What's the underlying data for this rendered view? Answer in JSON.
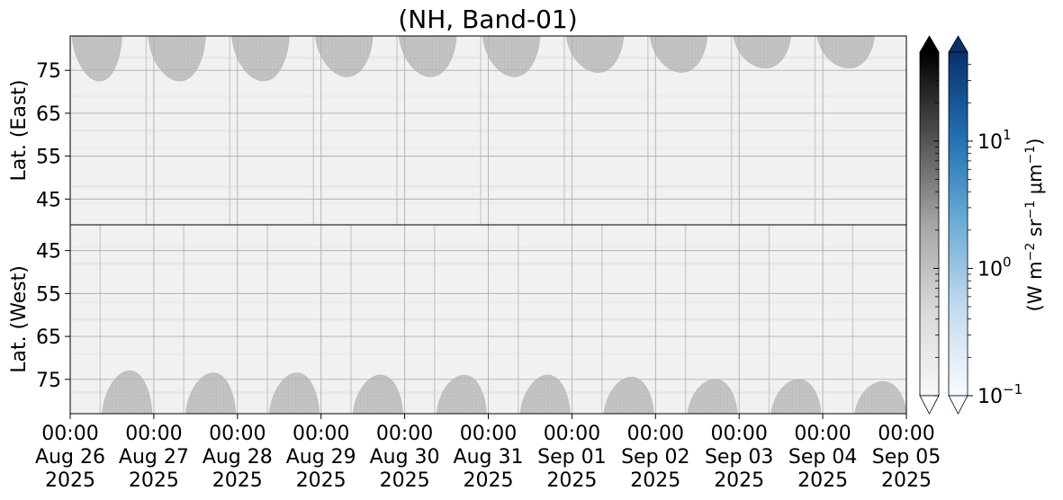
{
  "chart_data": {
    "type": "heatmap",
    "title": "(NH, Band-01)",
    "x_range": [
      "2025-08-26T00:00",
      "2025-09-05T00:00"
    ],
    "x_ticks": [
      {
        "time": "00:00",
        "date": "Aug 26",
        "year": "2025"
      },
      {
        "time": "00:00",
        "date": "Aug 27",
        "year": "2025"
      },
      {
        "time": "00:00",
        "date": "Aug 28",
        "year": "2025"
      },
      {
        "time": "00:00",
        "date": "Aug 29",
        "year": "2025"
      },
      {
        "time": "00:00",
        "date": "Aug 30",
        "year": "2025"
      },
      {
        "time": "00:00",
        "date": "Aug 31",
        "year": "2025"
      },
      {
        "time": "00:00",
        "date": "Sep 01",
        "year": "2025"
      },
      {
        "time": "00:00",
        "date": "Sep 02",
        "year": "2025"
      },
      {
        "time": "00:00",
        "date": "Sep 03",
        "year": "2025"
      },
      {
        "time": "00:00",
        "date": "Sep 04",
        "year": "2025"
      },
      {
        "time": "00:00",
        "date": "Sep 05",
        "year": "2025"
      }
    ],
    "grid": true,
    "panels": [
      {
        "name": "east",
        "ylabel": "Lat. (East)",
        "ylim": [
          83,
          39
        ],
        "yticks": [
          "45",
          "55",
          "65",
          "75"
        ],
        "ytick_values": [
          45,
          55,
          65,
          75
        ],
        "swath_peak_lat": [
          72.5,
          72.5,
          72.5,
          73.5,
          73.5,
          73.5,
          74.5,
          74.5,
          75.5,
          75.5
        ],
        "swath_start_day": [
          0.02,
          0.93,
          1.93,
          2.93,
          3.93,
          4.93,
          5.93,
          6.93,
          7.93,
          8.93
        ],
        "swath_end_day": [
          0.62,
          1.62,
          2.62,
          3.62,
          4.62,
          5.62,
          6.62,
          7.62,
          8.62,
          9.62
        ]
      },
      {
        "name": "west",
        "ylabel": "Lat. (West)",
        "ylim": [
          39,
          83
        ],
        "yticks": [
          "75",
          "65",
          "55",
          "45"
        ],
        "ytick_values": [
          75,
          65,
          55,
          45
        ],
        "swath_peak_lat": [
          73,
          73.5,
          73.5,
          74,
          74,
          74,
          74.5,
          75,
          75,
          75.5
        ],
        "swath_start_day": [
          0.38,
          1.38,
          2.38,
          3.38,
          4.38,
          5.38,
          6.38,
          7.38,
          8.38,
          9.38
        ],
        "swath_end_day": [
          0.98,
          1.98,
          2.98,
          3.98,
          4.98,
          5.98,
          6.98,
          7.98,
          8.98,
          10.0
        ]
      }
    ],
    "colorbars": [
      {
        "colormap": "greys",
        "range": [
          0.1,
          50
        ],
        "scale": "log",
        "extend": "both"
      },
      {
        "colormap": "blues",
        "range": [
          0.1,
          50
        ],
        "scale": "log",
        "extend": "both",
        "ticks": [
          0.1,
          1,
          10
        ],
        "tick_labels": [
          "10",
          "10",
          "10"
        ],
        "tick_exponents": [
          "−1",
          "0",
          "1"
        ]
      }
    ],
    "colorbar_label": {
      "base": "(W m",
      "exp1": "−2",
      "mid": " sr",
      "exp2": "−1",
      "mu": " μm",
      "exp3": "−1",
      "end": ")"
    },
    "colors": {
      "swath": "#c2c2c2",
      "background": "#f1f1f1",
      "grid": "#b0b0b0"
    }
  }
}
